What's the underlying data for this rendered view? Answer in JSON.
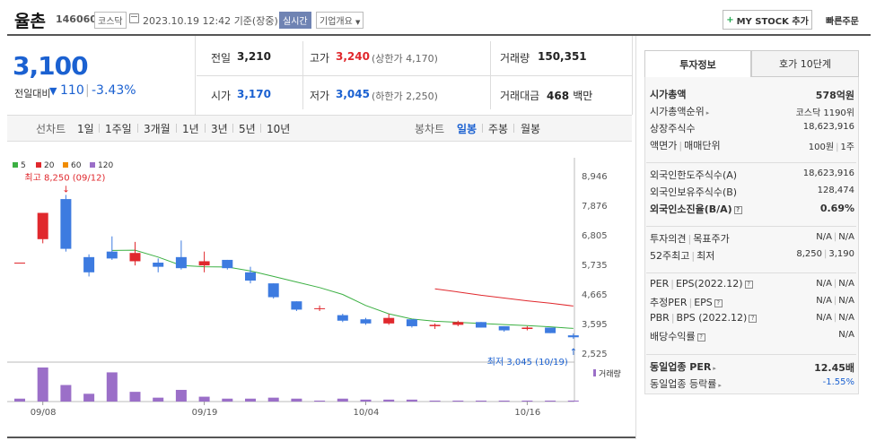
{
  "header": {
    "name": "율촌",
    "code": "146060",
    "market": "코스닥",
    "datetime": "2023.10.19 12:42",
    "basis": "기준(장중)",
    "realtime": "실시간",
    "company_info": "기업개요",
    "mystock": "MY STOCK 추가",
    "quick_order": "빠른주문"
  },
  "summary": {
    "price": "3,100",
    "diff_label": "전일대비",
    "diff_value": "110",
    "diff_rate": "-3.43%",
    "prev_label": "전일",
    "prev_value": "3,210",
    "open_label": "시가",
    "open_value": "3,170",
    "high_label": "고가",
    "high_value": "3,240",
    "high_sub": "(상한가 4,170)",
    "low_label": "저가",
    "low_value": "3,045",
    "low_sub": "(하한가 2,250)",
    "volume_label": "거래량",
    "volume_value": "150,351",
    "amount_label": "거래대금",
    "amount_value": "468",
    "amount_unit": "백만"
  },
  "period_tabs": {
    "line_label": "선차트",
    "line_items": [
      "1일",
      "1주일",
      "3개월",
      "1년",
      "3년",
      "5년",
      "10년"
    ],
    "candle_label": "봉차트",
    "candle_items": [
      "일봉",
      "주봉",
      "월봉"
    ],
    "active_candle": "일봉"
  },
  "chart_data": {
    "type": "candlestick",
    "ma_legend": [
      {
        "label": "5",
        "color": "#3cb043"
      },
      {
        "label": "20",
        "color": "#e0282d"
      },
      {
        "label": "60",
        "color": "#f08c00"
      },
      {
        "label": "120",
        "color": "#9b6fc8"
      }
    ],
    "y_ticks": [
      "8,946",
      "7,876",
      "6,805",
      "5,735",
      "4,665",
      "3,595",
      "2,525"
    ],
    "ylim": [
      2525,
      8946
    ],
    "x_ticks": [
      "09/08",
      "09/19",
      "10/04",
      "10/16"
    ],
    "high_note": "최고 8,250 (09/12)",
    "low_note": "최저 3,045 (10/19)",
    "volume_label": "거래량",
    "candles": [
      {
        "o": 5800,
        "h": 5800,
        "l": 5800,
        "c": 5800,
        "v": 3
      },
      {
        "o": 6650,
        "h": 7600,
        "l": 6500,
        "c": 7600,
        "v": 35
      },
      {
        "o": 8100,
        "h": 8250,
        "l": 6200,
        "c": 6300,
        "v": 17
      },
      {
        "o": 6000,
        "h": 6100,
        "l": 5300,
        "c": 5450,
        "v": 8
      },
      {
        "o": 6200,
        "h": 6750,
        "l": 5900,
        "c": 5950,
        "v": 30
      },
      {
        "o": 5850,
        "h": 6550,
        "l": 5700,
        "c": 6150,
        "v": 10
      },
      {
        "o": 5800,
        "h": 5950,
        "l": 5450,
        "c": 5650,
        "v": 4
      },
      {
        "o": 6000,
        "h": 6600,
        "l": 5550,
        "c": 5600,
        "v": 12
      },
      {
        "o": 5700,
        "h": 6200,
        "l": 5450,
        "c": 5850,
        "v": 5
      },
      {
        "o": 5900,
        "h": 5900,
        "l": 5550,
        "c": 5600,
        "v": 3
      },
      {
        "o": 5450,
        "h": 5650,
        "l": 5050,
        "c": 5150,
        "v": 3
      },
      {
        "o": 5050,
        "h": 5050,
        "l": 4500,
        "c": 4550,
        "v": 4
      },
      {
        "o": 4400,
        "h": 4400,
        "l": 4050,
        "c": 4100,
        "v": 3
      },
      {
        "o": 4150,
        "h": 4250,
        "l": 4050,
        "c": 4150,
        "v": 1
      },
      {
        "o": 3900,
        "h": 3950,
        "l": 3650,
        "c": 3700,
        "v": 3
      },
      {
        "o": 3750,
        "h": 3800,
        "l": 3550,
        "c": 3600,
        "v": 2
      },
      {
        "o": 3600,
        "h": 3950,
        "l": 3550,
        "c": 3800,
        "v": 2
      },
      {
        "o": 3750,
        "h": 3750,
        "l": 3450,
        "c": 3500,
        "v": 2
      },
      {
        "o": 3500,
        "h": 3600,
        "l": 3400,
        "c": 3550,
        "v": 1
      },
      {
        "o": 3550,
        "h": 3700,
        "l": 3500,
        "c": 3650,
        "v": 1
      },
      {
        "o": 3650,
        "h": 3650,
        "l": 3450,
        "c": 3450,
        "v": 1
      },
      {
        "o": 3500,
        "h": 3500,
        "l": 3300,
        "c": 3350,
        "v": 1
      },
      {
        "o": 3400,
        "h": 3500,
        "l": 3350,
        "c": 3450,
        "v": 1
      },
      {
        "o": 3450,
        "h": 3450,
        "l": 3250,
        "c": 3250,
        "v": 1
      },
      {
        "o": 3170,
        "h": 3240,
        "l": 3045,
        "c": 3100,
        "v": 1
      }
    ],
    "ma5": [
      null,
      null,
      null,
      null,
      6240,
      6250,
      6000,
      5700,
      5650,
      5640,
      5500,
      5300,
      5100,
      4900,
      4650,
      4250,
      3950,
      3760,
      3680,
      3640,
      3600,
      3560,
      3520,
      3480,
      3420
    ],
    "ma20": [
      null,
      null,
      null,
      null,
      null,
      null,
      null,
      null,
      null,
      null,
      null,
      null,
      null,
      null,
      null,
      null,
      null,
      null,
      4850,
      4740,
      4620,
      4520,
      4420,
      4330,
      4230
    ]
  },
  "info": {
    "tab_info": "투자정보",
    "tab_hoga": "호가 10단계",
    "rows1": [
      {
        "k": "시가총액",
        "v": "578억원",
        "bold": true
      },
      {
        "k": "시가총액순위",
        "v": "코스닥 1190위",
        "arrow": true
      },
      {
        "k": "상장주식수",
        "v": "18,623,916"
      },
      {
        "k": "액면가",
        "k2": "매매단위",
        "v": "100원",
        "v2": "1주"
      }
    ],
    "rows2": [
      {
        "k": "외국인한도주식수(A)",
        "v": "18,623,916"
      },
      {
        "k": "외국인보유주식수(B)",
        "v": "128,474"
      },
      {
        "k": "외국인소진율(B/A)",
        "v": "0.69%",
        "bold": true,
        "q": true
      }
    ],
    "rows3": [
      {
        "k": "투자의견",
        "k2": "목표주가",
        "v": "N/A",
        "v2": "N/A"
      },
      {
        "k": "52주최고",
        "k2": "최저",
        "v": "8,250",
        "v2": "3,190"
      }
    ],
    "rows4": [
      {
        "k": "PER",
        "k2": "EPS(2022.12)",
        "v": "N/A",
        "v2": "N/A",
        "q": true
      },
      {
        "k": "추정PER",
        "k2": "EPS",
        "v": "N/A",
        "v2": "N/A",
        "q": true
      },
      {
        "k": "PBR",
        "k2": "BPS (2022.12)",
        "v": "N/A",
        "v2": "N/A",
        "q": true
      },
      {
        "k": "배당수익률",
        "v": "N/A",
        "q": true
      }
    ],
    "rows5": [
      {
        "k": "동일업종 PER",
        "v": "12.45배",
        "bold": true,
        "arrow": true
      },
      {
        "k": "동일업종 등락률",
        "v": "-1.55%",
        "blue": true,
        "arrow": true
      }
    ]
  }
}
